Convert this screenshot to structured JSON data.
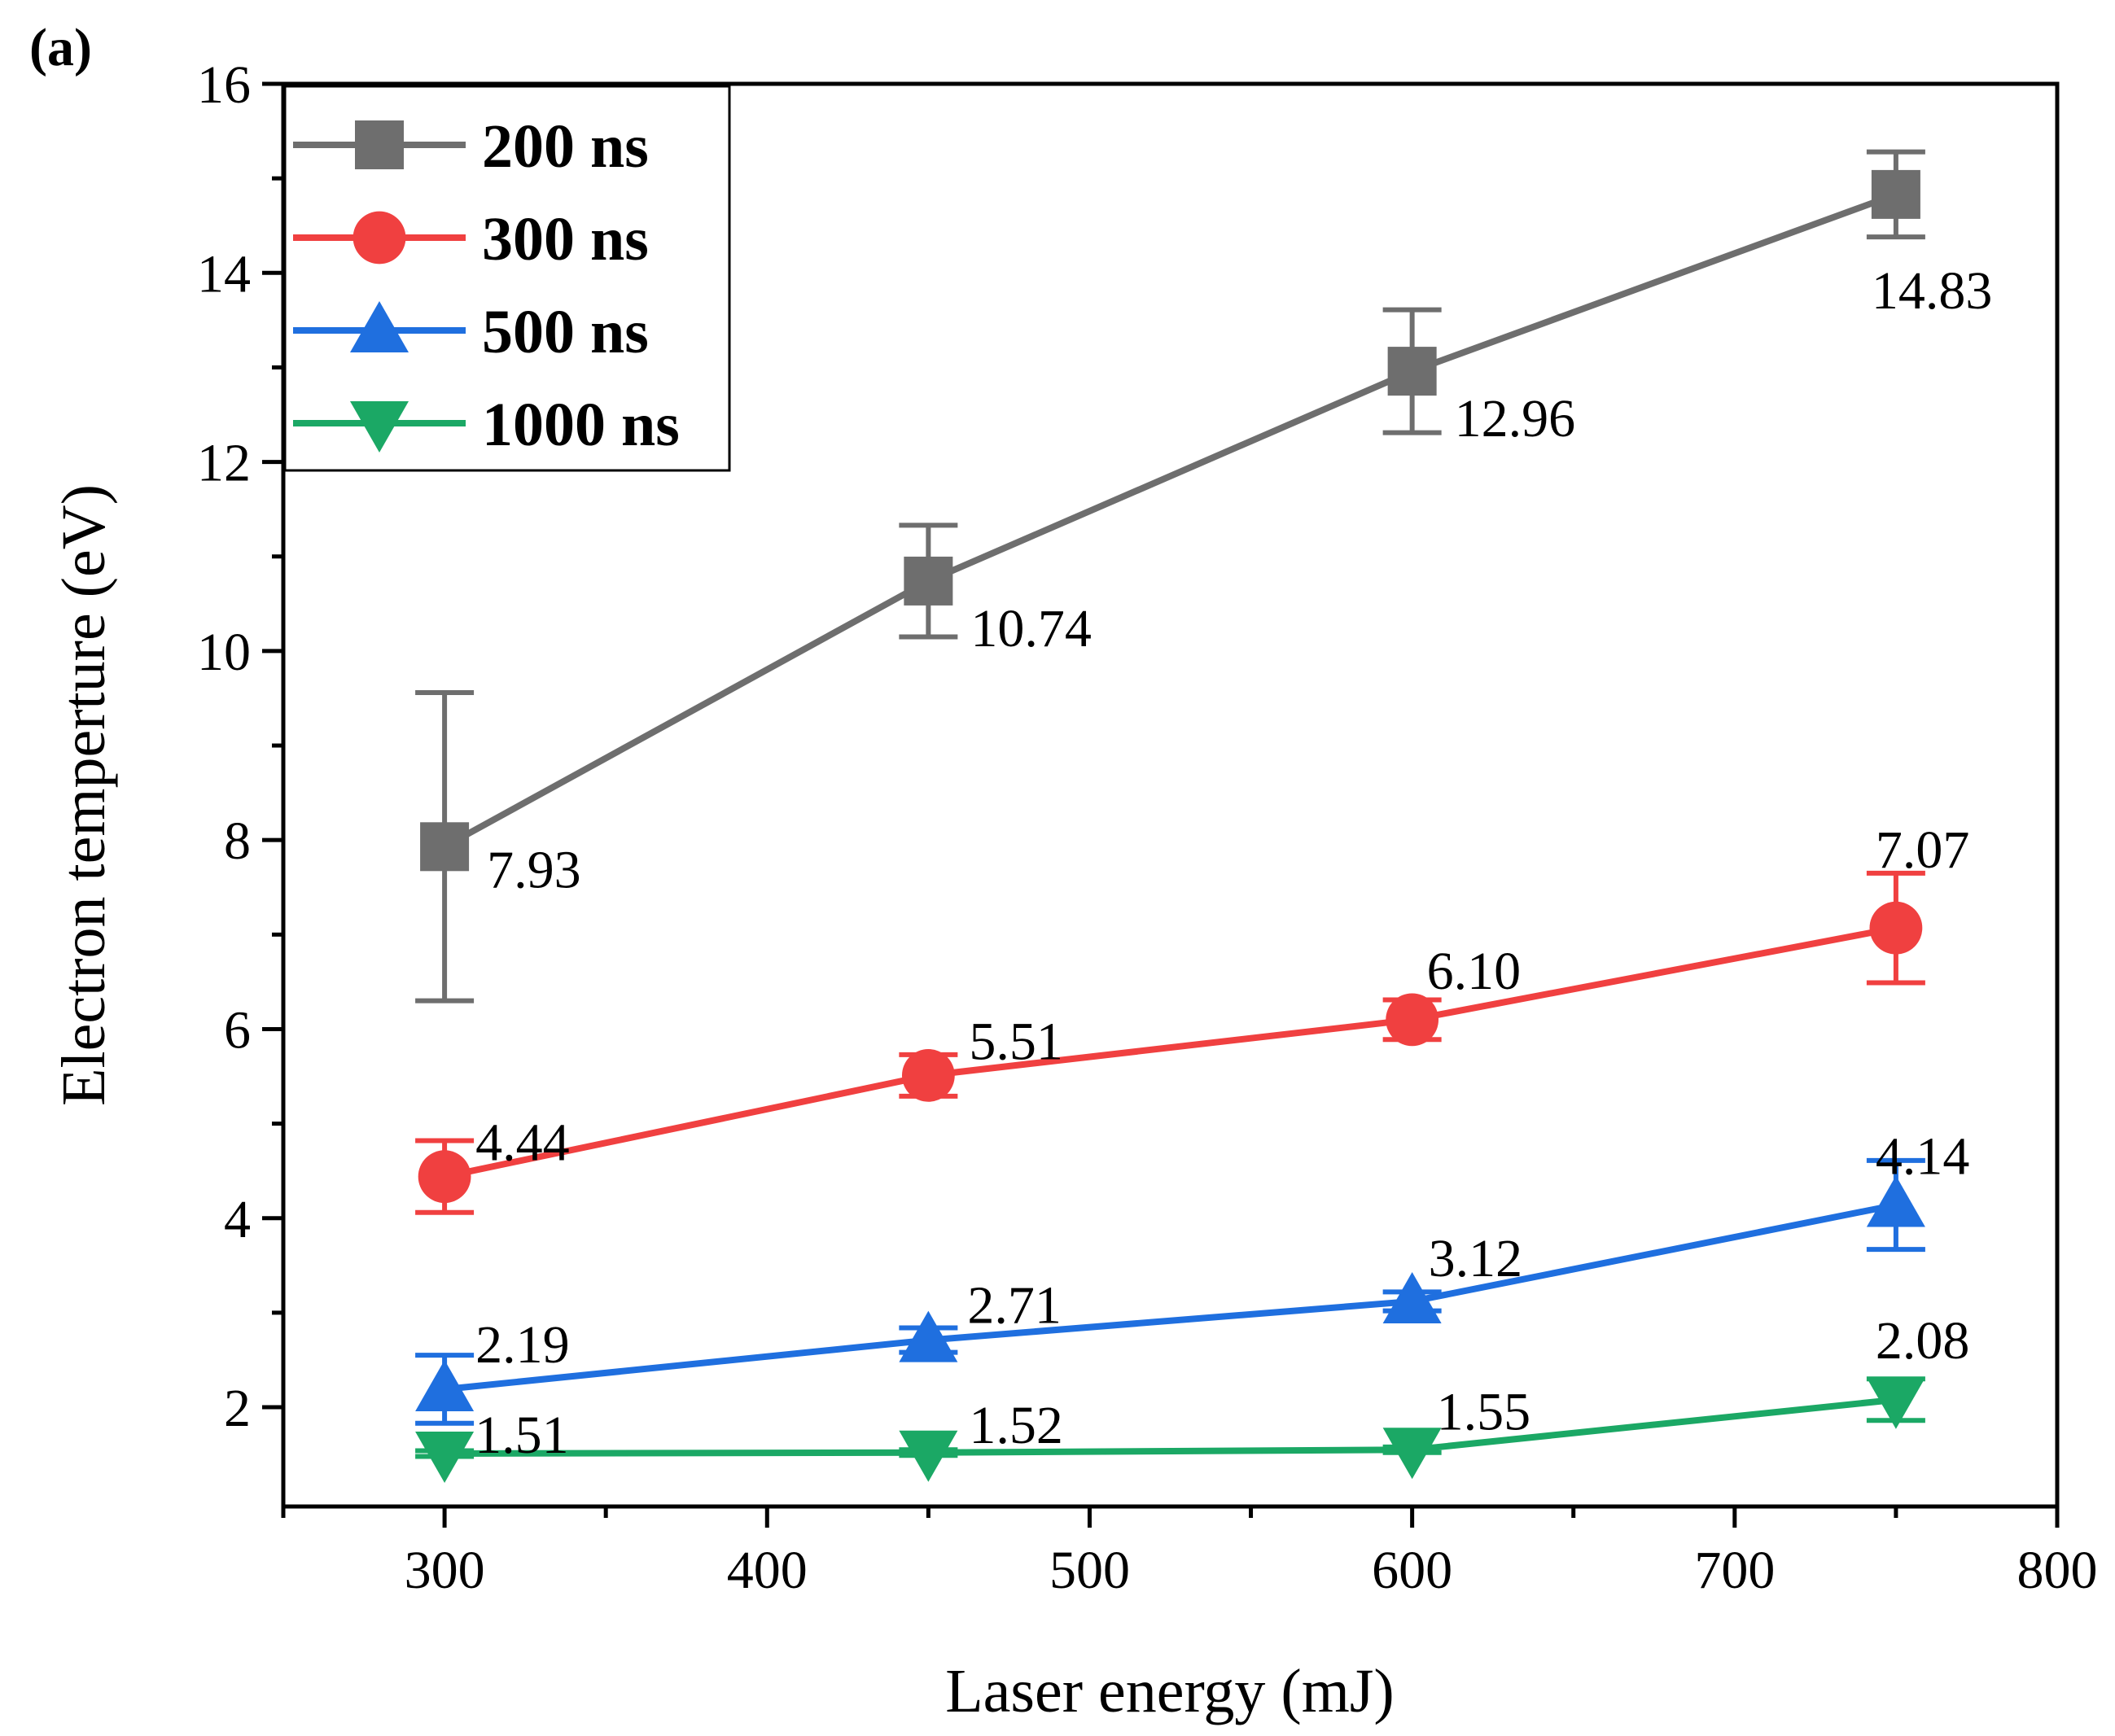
{
  "panel_label": "(a)",
  "chart_data": {
    "type": "line",
    "title": "",
    "xlabel": "Laser energy (mJ)",
    "ylabel": "Electron temperture (eV)",
    "xlim": [
      250,
      800
    ],
    "ylim": [
      0.95,
      16
    ],
    "x_ticks": [
      300,
      400,
      500,
      600,
      700,
      800
    ],
    "x_minor_ticks": [
      250,
      350,
      450,
      550,
      650,
      750
    ],
    "y_ticks": [
      2,
      4,
      6,
      8,
      10,
      12,
      14,
      16
    ],
    "y_minor_ticks": [
      3,
      5,
      7,
      9,
      11,
      13,
      15
    ],
    "x": [
      300,
      450,
      600,
      750
    ],
    "grid": false,
    "legend_position": "top-left",
    "series": [
      {
        "name": "200 ns",
        "marker": "square",
        "color": "#6e6e6e",
        "values": [
          7.93,
          10.74,
          12.96,
          14.83
        ],
        "labels": [
          "7.93",
          "10.74",
          "12.96",
          "14.83"
        ],
        "errors": [
          1.63,
          0.59,
          0.65,
          0.45
        ]
      },
      {
        "name": "300 ns",
        "marker": "circle",
        "color": "#f04040",
        "values": [
          4.44,
          5.51,
          6.1,
          7.07
        ],
        "labels": [
          "4.44",
          "5.51",
          "6.10",
          "7.07"
        ],
        "errors": [
          0.38,
          0.22,
          0.21,
          0.58
        ]
      },
      {
        "name": "500 ns",
        "marker": "triangle-up",
        "color": "#1f6fdf",
        "values": [
          2.19,
          2.71,
          3.12,
          4.14
        ],
        "labels": [
          "2.19",
          "2.71",
          "3.12",
          "4.14"
        ],
        "errors": [
          0.36,
          0.13,
          0.1,
          0.47
        ]
      },
      {
        "name": "1000 ns",
        "marker": "triangle-down",
        "color": "#1ba865",
        "values": [
          1.51,
          1.52,
          1.55,
          2.08
        ],
        "labels": [
          "1.51",
          "1.52",
          "1.55",
          "2.08"
        ],
        "errors": [
          0.03,
          0.03,
          0.03,
          0.22
        ]
      }
    ]
  }
}
